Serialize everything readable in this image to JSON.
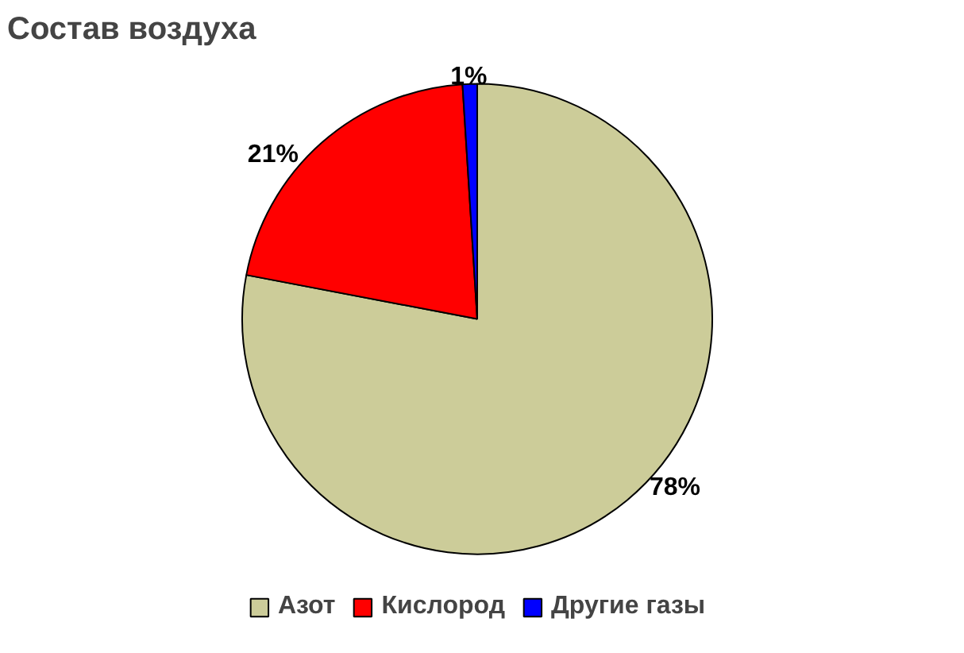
{
  "chart_data": {
    "type": "pie",
    "title": "Состав воздуха",
    "categories": [
      "Азот",
      "Кислород",
      "Другие газы"
    ],
    "values": [
      78,
      21,
      1
    ],
    "colors": [
      "#cccc99",
      "#ff0000",
      "#0000ff"
    ],
    "value_labels": [
      "78%",
      "21%",
      "1%"
    ],
    "legend": "bottom"
  }
}
